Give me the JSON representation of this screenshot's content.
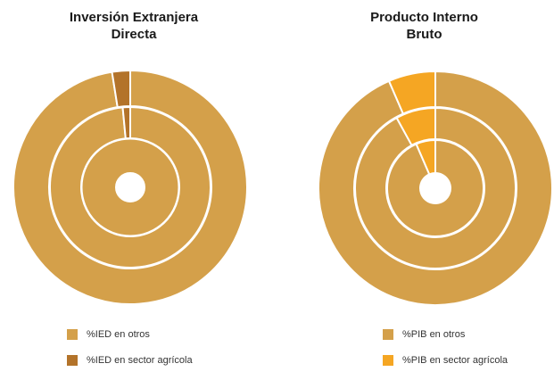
{
  "chart_data": [
    {
      "type": "pie",
      "title": "Inversión Extranjera Directa",
      "title_lines": [
        "Inversión Extranjera",
        "Directa"
      ],
      "categories": [
        "%IED en otros",
        "%IED en sector agrícola"
      ],
      "rings": [
        {
          "values": [
            97.5,
            2.5
          ]
        },
        {
          "values": [
            98.5,
            1.5
          ]
        },
        {
          "values": [
            100,
            0
          ]
        }
      ],
      "colors": [
        "#D4A04A",
        "#B3732A"
      ],
      "legend_position": "bottom"
    },
    {
      "type": "pie",
      "title": "Producto Interno Bruto",
      "title_lines": [
        "Producto Interno",
        "Bruto"
      ],
      "categories": [
        "%PIB en otros",
        "%PIB en sector agrícola"
      ],
      "rings": [
        {
          "values": [
            93.5,
            6.5
          ]
        },
        {
          "values": [
            92,
            8
          ]
        },
        {
          "values": [
            93.5,
            6.5
          ]
        }
      ],
      "colors": [
        "#D4A04A",
        "#F5A623"
      ],
      "legend_position": "bottom"
    }
  ]
}
